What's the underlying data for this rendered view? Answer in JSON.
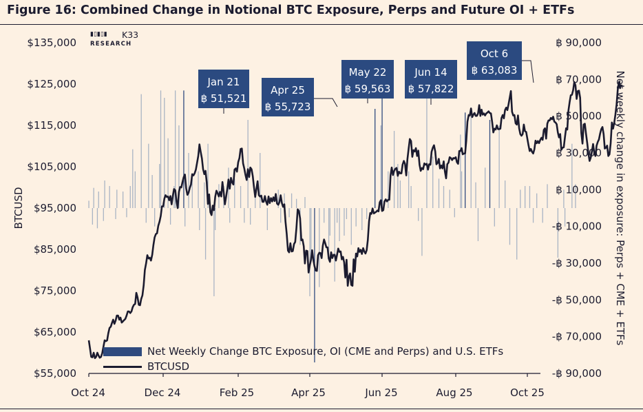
{
  "title": "Figure 16: Combined Change in Notional BTC Exposure, Perps and Future OI + ETFs",
  "brand": {
    "mark": "▮▯▮▯▮",
    "name": "K33",
    "sub": "RESEARCH"
  },
  "colors": {
    "background": "#fdf1e3",
    "line": "#1b1b2f",
    "bars": "#2f4a7e",
    "bars_faint": "#a9b4c4",
    "annotation_box": "#2b4a80"
  },
  "chart_data": {
    "type": "bar+line",
    "x_ticks": [
      "Oct 24",
      "Dec 24",
      "Feb 25",
      "Apr 25",
      "Jun 25",
      "Aug 25",
      "Oct 25"
    ],
    "y_left": {
      "label": "BTCUSD",
      "range": [
        55000,
        135000
      ],
      "ticks": [
        55000,
        65000,
        75000,
        85000,
        95000,
        105000,
        115000,
        125000,
        135000
      ],
      "tick_labels": [
        "$55,000",
        "$65,000",
        "$75,000",
        "$85,000",
        "$95,000",
        "$105,000",
        "$115,000",
        "$125,000",
        "$135,000"
      ]
    },
    "y_right": {
      "label": "Net weekly change in exposure: Perps + CME + ETFs",
      "range": [
        -90000,
        90000
      ],
      "ticks": [
        -90000,
        -70000,
        -50000,
        -30000,
        -10000,
        10000,
        30000,
        50000,
        70000,
        90000
      ],
      "tick_labels": [
        "-฿ 90,000",
        "-฿ 70,000",
        "-฿ 50,000",
        "-฿ 30,000",
        "-฿ 10,000",
        "฿ 10,000",
        "฿ 30,000",
        "฿ 50,000",
        "฿ 70,000",
        "฿ 90,000"
      ]
    },
    "series": [
      {
        "name": "Net Weekly Change BTC Exposure, OI (CME and Perps) and U.S. ETFs",
        "kind": "bar",
        "axis": "right",
        "x_start": "2024-10-01",
        "x_step_days": 1,
        "values": [
          4000,
          0,
          0,
          -9000,
          11000,
          0,
          0,
          -11000,
          9000,
          0,
          0,
          0,
          -7000,
          15000,
          0,
          0,
          0,
          12000,
          0,
          0,
          0,
          0,
          -6000,
          10000,
          0,
          0,
          0,
          0,
          9000,
          0,
          0,
          -5000,
          0,
          0,
          12000,
          0,
          32000,
          0,
          20000,
          0,
          0,
          0,
          0,
          62000,
          0,
          0,
          0,
          -8000,
          0,
          35000,
          0,
          0,
          18000,
          0,
          -10000,
          0,
          0,
          0,
          24000,
          64000,
          0,
          0,
          60000,
          0,
          0,
          38000,
          0,
          -9000,
          0,
          0,
          12000,
          64000,
          0,
          0,
          45000,
          0,
          0,
          0,
          64000,
          -10000,
          0,
          0,
          30000,
          0,
          0,
          18000,
          0,
          0,
          0,
          0,
          20000,
          -12000,
          0,
          0,
          0,
          14000,
          -28000,
          0,
          35000,
          0,
          0,
          0,
          0,
          -48000,
          -12000,
          0,
          0,
          13000,
          0,
          0,
          0,
          12000,
          0,
          0,
          0,
          22000,
          -8000,
          0,
          0,
          0,
          16000,
          0,
          0,
          0,
          0,
          12000,
          0,
          0,
          -8000,
          0,
          0,
          48000,
          0,
          -9000,
          0,
          0,
          0,
          10000,
          0,
          0,
          0,
          30000,
          0,
          0,
          0,
          0,
          0,
          -12000,
          0,
          0,
          0,
          0,
          0,
          0,
          0,
          0,
          10000,
          0,
          -8000,
          0,
          0,
          8000,
          0,
          0,
          0,
          -5000,
          0,
          8000,
          0,
          0,
          0,
          5000,
          0,
          0,
          -20000,
          0,
          0,
          0,
          6000,
          0,
          0,
          0,
          -48000,
          -26000,
          0,
          0,
          -84000,
          0,
          0,
          0,
          -43000,
          0,
          0,
          0,
          -8000,
          0,
          0,
          0,
          -24000,
          -15000,
          0,
          0,
          0,
          -40000,
          0,
          -8000,
          0,
          -18000,
          0,
          0,
          0,
          -15000,
          0,
          -6000,
          0,
          0,
          0,
          -20000,
          0,
          0,
          0,
          -10000,
          0,
          0,
          0,
          0,
          -12000,
          0,
          0,
          0,
          -6000,
          0,
          0,
          0,
          0,
          0,
          0,
          54000,
          0,
          0,
          0,
          0,
          45000,
          62000,
          0,
          0,
          0,
          0,
          20000,
          0,
          0,
          0,
          0,
          42000,
          0,
          0,
          24000,
          0,
          15000,
          0,
          0,
          0,
          0,
          0,
          0,
          20000,
          0,
          12000,
          0,
          0,
          0,
          0,
          0,
          -7000,
          0,
          0,
          -26000,
          0,
          0,
          0,
          60000,
          0,
          0,
          0,
          0,
          28000,
          0,
          0,
          0,
          0,
          16000,
          0,
          0,
          0,
          12000,
          0,
          0,
          0,
          0,
          10000,
          0,
          0,
          0,
          -5000,
          0,
          0,
          0,
          0,
          40000,
          20000,
          0,
          0,
          52000,
          0,
          0,
          0,
          0,
          50000,
          0,
          0,
          0,
          14000,
          0,
          -18000,
          0,
          0,
          0,
          0,
          0,
          22000,
          0,
          0,
          0,
          48000,
          0,
          0,
          0,
          -10000,
          0,
          0,
          0,
          45000,
          0,
          0,
          0,
          0,
          15000,
          0,
          0,
          0,
          -20000,
          0,
          0,
          0,
          0,
          0,
          -28000,
          0,
          0,
          10000,
          0,
          0,
          0,
          12000,
          0,
          0,
          0,
          12000,
          0,
          0,
          -8000,
          0,
          0,
          8000,
          0,
          0,
          0,
          0,
          -8000,
          0,
          0,
          0,
          13000,
          0,
          0,
          0,
          0,
          0,
          0,
          0,
          0,
          -27000,
          0,
          0,
          0,
          0,
          10000,
          -10000,
          0,
          0,
          0,
          0,
          0,
          35000,
          0,
          0,
          13000,
          0,
          0,
          0
        ]
      },
      {
        "name": "BTCUSD",
        "kind": "line",
        "axis": "left",
        "x_start": "2024-10-01",
        "x_step_days": 1,
        "values": [
          63000,
          61000,
          59000,
          58900,
          60000,
          58700,
          59000,
          60000,
          59300,
          58800,
          59000,
          59900,
          61400,
          63000,
          62800,
          63000,
          64700,
          66000,
          66300,
          67200,
          68000,
          67000,
          67800,
          69000,
          69000,
          68000,
          68500,
          67300,
          67600,
          67900,
          68200,
          69000,
          70000,
          70000,
          69600,
          70000,
          71000,
          71600,
          71800,
          74500,
          73400,
          71600,
          71500,
          73000,
          73900,
          76300,
          80000,
          81600,
          83600,
          82800,
          83000,
          82300,
          83700,
          86000,
          87900,
          88700,
          88900,
          90700,
          91700,
          93100,
          95400,
          95400,
          97300,
          98100,
          97700,
          97800,
          96900,
          97900,
          95900,
          98000,
          99600,
          99300,
          96700,
          95000,
          98900,
          100100,
          100000,
          101300,
          102500,
          103100,
          99800,
          98200,
          98700,
          99900,
          100700,
          103200,
          102900,
          103400,
          104300,
          105900,
          107600,
          110400,
          108600,
          107000,
          104400,
          103200,
          104000,
          101200,
          96000,
          98300,
          94000,
          93300,
          95600,
          94500,
          97700,
          99200,
          98600,
          97800,
          98900,
          97800,
          101300,
          98900,
          95900,
          97700,
          99700,
          101900,
          99700,
          102300,
          101200,
          100700,
          104300,
          104600,
          103800,
          106100,
          107100,
          109300,
          109400,
          105800,
          104600,
          103000,
          101800,
          104400,
          102500,
          104800,
          104400,
          102700,
          100100,
          97700,
          99600,
          101500,
          98100,
          97800,
          98000,
          96500,
          96500,
          97900,
          96600,
          95800,
          97800,
          96200,
          97400,
          96600,
          97600,
          96700,
          98400,
          96100,
          95800,
          96400,
          98100,
          96200,
          95300,
          95900,
          91700,
          88700,
          84700,
          84300,
          86500,
          84500,
          84600,
          86300,
          86800,
          90200,
          94700,
          94300,
          92500,
          87200,
          87400,
          85800,
          81600,
          84700,
          84600,
          79400,
          81200,
          82400,
          84800,
          82400,
          80900,
          79900,
          79800,
          83600,
          84200,
          84100,
          82900,
          85900,
          87400,
          86500,
          85500,
          85500,
          82800,
          82000,
          84300,
          82900,
          83700,
          83700,
          82300,
          83700,
          85200,
          84400,
          84500,
          82600,
          83200,
          81900,
          78200,
          82500,
          76200,
          78400,
          79200,
          76400,
          76200,
          82600,
          79600,
          84000,
          83300,
          85300,
          84400,
          84900,
          83900,
          85300,
          84500,
          84000,
          84800,
          87300,
          91800,
          93800,
          93600,
          94900,
          93700,
          93900,
          94100,
          94400,
          94200,
          96400,
          96900,
          94300,
          94500,
          96600,
          97100,
          96600,
          97000,
          97000,
          102900,
          104800,
          103000,
          104000,
          104500,
          104700,
          102800,
          103800,
          103400,
          103400,
          105500,
          106400,
          105700,
          102900,
          106800,
          109400,
          111700,
          111200,
          107400,
          109000,
          108700,
          109500,
          107600,
          108900,
          105500,
          104000,
          104700,
          104400,
          105800,
          105500,
          105700,
          104300,
          105600,
          105500,
          108600,
          109600,
          110200,
          108700,
          105600,
          105900,
          106900,
          104600,
          105300,
          104600,
          106300,
          103900,
          102200,
          105600,
          106000,
          107300,
          107100,
          106600,
          107100,
          107000,
          107300,
          106100,
          105700,
          108800,
          108800,
          109500,
          108000,
          108200,
          108200,
          111300,
          115900,
          117500,
          117400,
          119100,
          117000,
          117600,
          118000,
          117300,
          117300,
          117900,
          119900,
          117300,
          118800,
          117600,
          117900,
          117400,
          117900,
          118100,
          118400,
          118000,
          117900,
          115800,
          113300,
          114200,
          114000,
          115000,
          114100,
          114100,
          114200,
          116800,
          117500,
          116700,
          118700,
          119300,
          118700,
          120100,
          121700,
          123300,
          118300,
          117400,
          117500,
          115500,
          115200,
          117400,
          114300,
          112900,
          112500,
          112900,
          115200,
          113600,
          113400,
          111800,
          110200,
          108800,
          109300,
          108600,
          108200,
          109200,
          111300,
          110700,
          111200,
          110700,
          111500,
          112000,
          111500,
          113900,
          114300,
          111800,
          115400,
          116200,
          116200,
          116800,
          116500,
          117100,
          115900,
          115700,
          115300,
          113300,
          112100,
          112900,
          109100,
          109600,
          109700,
          112100,
          114300,
          114000,
          118600,
          120600,
          122300,
          122400,
          123500,
          125500,
          124700,
          121400,
          123300,
          123400,
          121700,
          113200,
          110600,
          115200,
          115400,
          113000,
          110700,
          108200,
          106400,
          107200,
          108700,
          110500,
          108400,
          107600,
          110100,
          111000,
          111600,
          113000,
          114100,
          114600,
          112900,
          109400,
          109600,
          110100,
          107600,
          108000,
          110600,
          115700,
          114200,
          115600,
          117600,
          120000,
          123600,
          125500,
          124000,
          124900
        ]
      }
    ],
    "annotations": [
      {
        "date_label": "Jan 21",
        "value_label": "฿ 51,521"
      },
      {
        "date_label": "Apr 25",
        "value_label": "฿ 55,723"
      },
      {
        "date_label": "May 22",
        "value_label": "฿ 59,563"
      },
      {
        "date_label": "Jun 14",
        "value_label": "฿ 57,822"
      },
      {
        "date_label": "Oct 6",
        "value_label": "฿ 63,083"
      }
    ],
    "legend": {
      "placement": "bottom-left",
      "entries": [
        "Net Weekly Change BTC Exposure, OI (CME and Perps) and U.S. ETFs",
        "BTCUSD"
      ]
    },
    "grid": false
  }
}
